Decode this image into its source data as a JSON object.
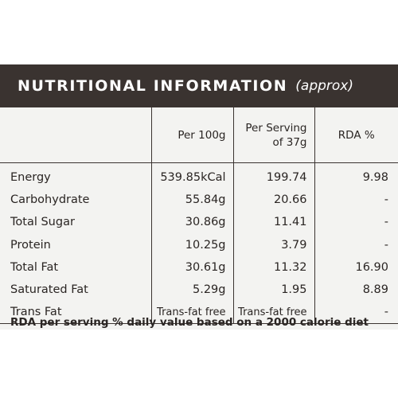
{
  "header": {
    "title": "NUTRITIONAL INFORMATION",
    "subtitle": "(approx)"
  },
  "columns": {
    "per_100g": "Per 100g",
    "per_serving_line1": "Per Serving",
    "per_serving_line2": "of 37g",
    "rda": "RDA %"
  },
  "rows": [
    {
      "name": "Energy",
      "per_100g": "539.85kCal",
      "per_serving": "199.74",
      "rda": "9.98"
    },
    {
      "name": "Carbohydrate",
      "per_100g": "55.84g",
      "per_serving": "20.66",
      "rda": "-"
    },
    {
      "name": "Total Sugar",
      "per_100g": "30.86g",
      "per_serving": "11.41",
      "rda": "-"
    },
    {
      "name": "Protein",
      "per_100g": "10.25g",
      "per_serving": "3.79",
      "rda": "-"
    },
    {
      "name": "Total Fat",
      "per_100g": "30.61g",
      "per_serving": "11.32",
      "rda": "16.90"
    },
    {
      "name": "Saturated Fat",
      "per_100g": "5.29g",
      "per_serving": "1.95",
      "rda": "8.89"
    },
    {
      "name": "Trans Fat",
      "per_100g": "Trans-fat free",
      "per_serving": "Trans-fat free",
      "rda": "-"
    }
  ],
  "footer": "RDA per serving % daily value based on a 2000 calorie diet",
  "colors": {
    "header_bg": "#3a3330",
    "label_bg": "#f3f3f1",
    "text": "#2a2523"
  }
}
